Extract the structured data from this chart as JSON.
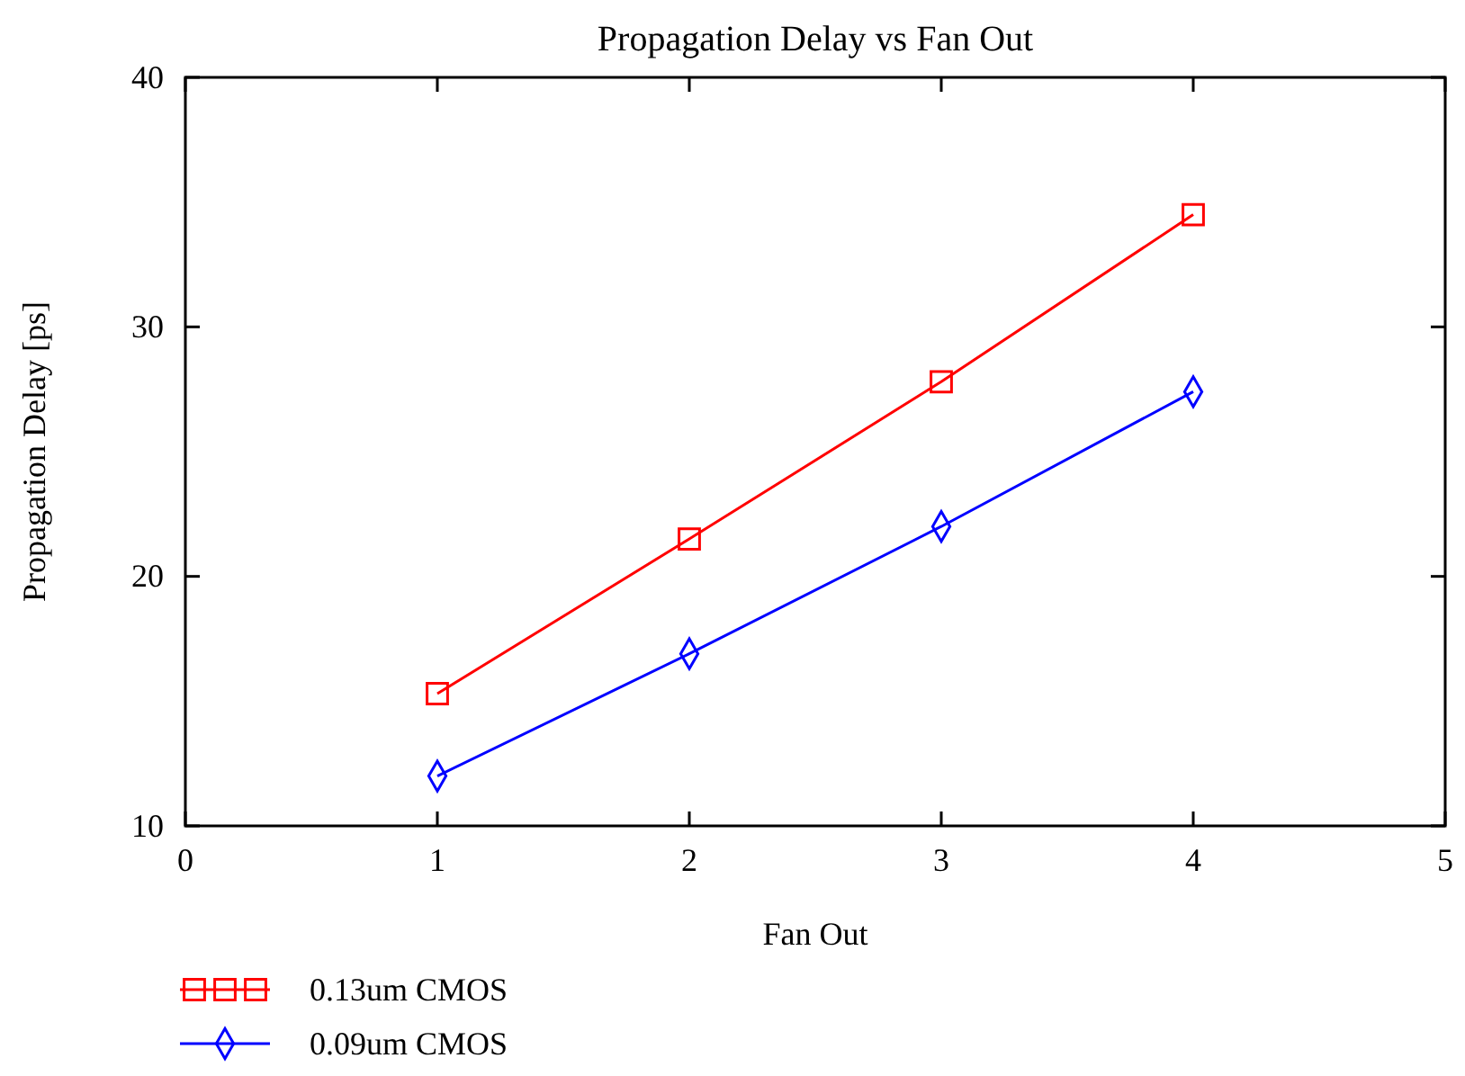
{
  "chart_data": {
    "type": "line",
    "title": "Propagation Delay vs Fan Out",
    "xlabel": "Fan Out",
    "ylabel": "Propagation Delay [ps]",
    "x": [
      1,
      2,
      3,
      4
    ],
    "series": [
      {
        "name": "0.13um CMOS",
        "color": "#ff0000",
        "marker": "square",
        "values": [
          15.3,
          21.5,
          27.8,
          34.5
        ]
      },
      {
        "name": "0.09um CMOS",
        "color": "#0000ff",
        "marker": "diamond",
        "values": [
          12.0,
          16.9,
          22.0,
          27.4
        ]
      }
    ],
    "xlim": [
      0,
      5
    ],
    "xticks": [
      0,
      1,
      2,
      3,
      4,
      5
    ],
    "ylim": [
      10,
      40
    ],
    "yticks": [
      10,
      20,
      30,
      40
    ],
    "legend": "bottom left",
    "line_style": "solid"
  }
}
